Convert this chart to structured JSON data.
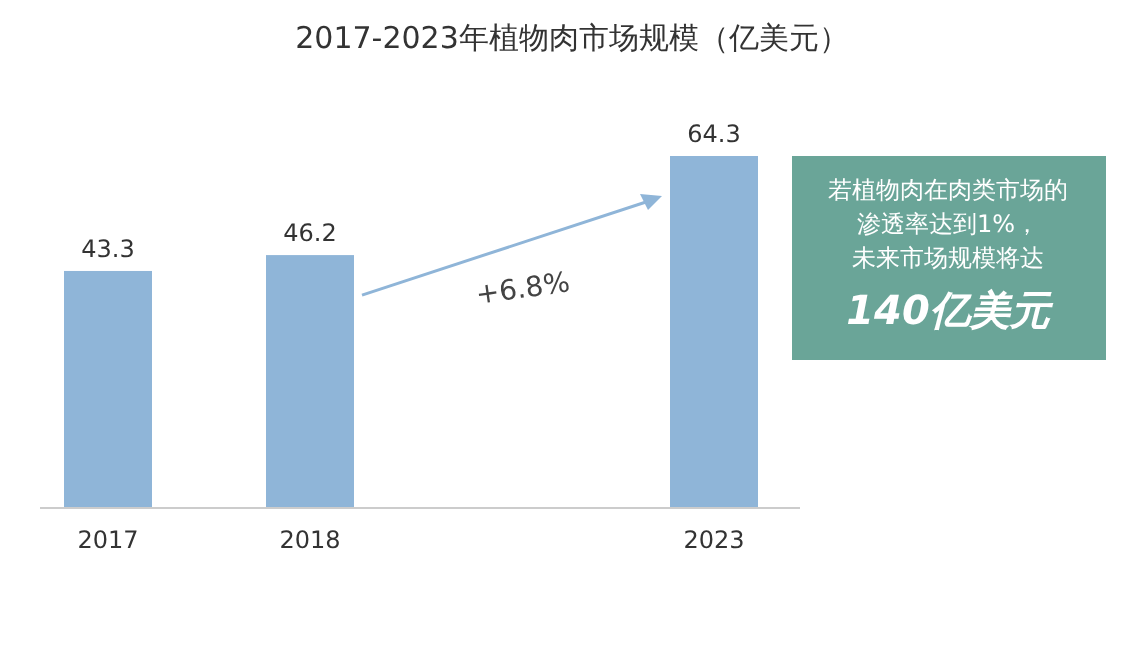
{
  "chart_data": {
    "type": "bar",
    "title": "2017-2023年植物肉市场规模（亿美元）",
    "categories": [
      "2017",
      "2018",
      null,
      "2023"
    ],
    "values": [
      43.3,
      46.2,
      null,
      64.3
    ],
    "color": "#8fb5d8",
    "data_labels": true,
    "annotations": [
      "+6.8%",
      "若植物肉在肉类市场的",
      "渗透率达到1%，",
      "未来市场规模将达",
      "140亿美元"
    ]
  }
}
